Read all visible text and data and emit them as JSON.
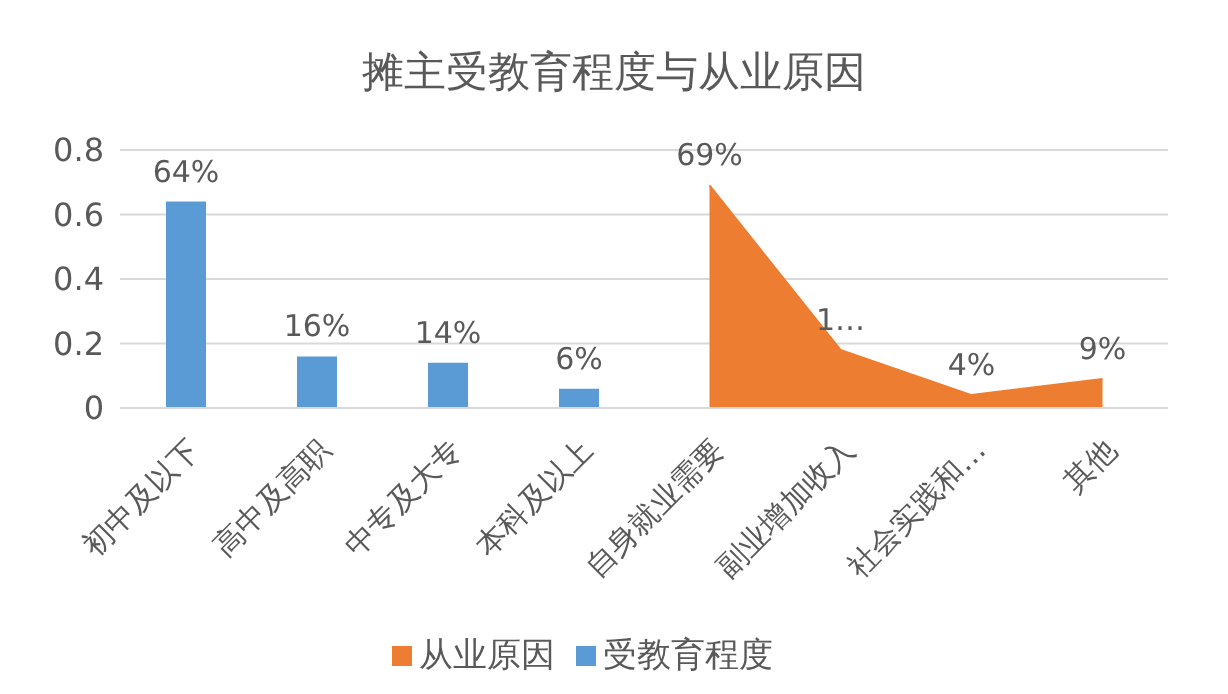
{
  "chart_data": {
    "type": "bar",
    "title": "摊主受教育程度与从业原因",
    "categories": [
      "初中及以下",
      "高中及高职",
      "中专及大专",
      "本科及以上",
      "自身就业需要",
      "副业增加收入",
      "社会实践和…",
      "其他"
    ],
    "series": [
      {
        "name": "从业原因",
        "type": "area",
        "color": "#ed7d31",
        "values": [
          null,
          null,
          null,
          null,
          0.69,
          0.18,
          0.04,
          0.09
        ],
        "value_labels": [
          null,
          null,
          null,
          null,
          "69%",
          "1…",
          "4%",
          "9%"
        ]
      },
      {
        "name": "受教育程度",
        "color": "#5b9bd5",
        "values": [
          0.64,
          0.16,
          0.14,
          0.06,
          null,
          null,
          null,
          null
        ],
        "value_labels": [
          "64%",
          "16%",
          "14%",
          "6%",
          null,
          null,
          null,
          null
        ]
      }
    ],
    "ylim": [
      0,
      0.8
    ],
    "yticks": [
      0,
      0.2,
      0.4,
      0.6,
      0.8
    ],
    "grid": "y",
    "legend": "bottom"
  }
}
